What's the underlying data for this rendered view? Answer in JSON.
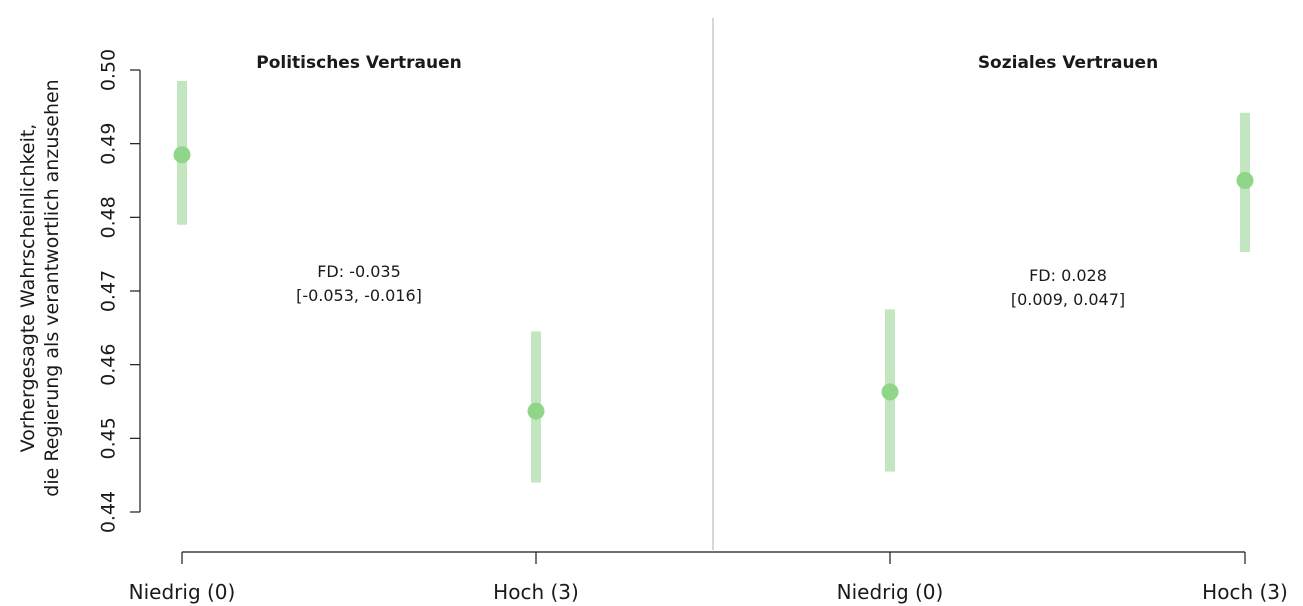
{
  "chart_data": {
    "type": "scatter",
    "ylabel": [
      "Vorhergesagte Wahrscheinlichkeit,",
      "die Regierung als verantwortlich anzusehen"
    ],
    "ylim": [
      0.44,
      0.5
    ],
    "yticks": [
      "0.44",
      "0.45",
      "0.46",
      "0.47",
      "0.48",
      "0.49",
      "0.50"
    ],
    "grid": false,
    "colors": {
      "point": "#8fd68a",
      "interval": "#c2e6bf",
      "divider": "#c8c8c8",
      "axis": "#1a1a1a"
    },
    "panels": [
      {
        "title": "Politisches Vertrauen",
        "categories": [
          "Niedrig (0)",
          "Hoch (3)"
        ],
        "points": [
          {
            "x": "Niedrig (0)",
            "y": 0.4885,
            "ci": [
              0.479,
              0.4985
            ]
          },
          {
            "x": "Hoch (3)",
            "y": 0.4537,
            "ci": [
              0.444,
              0.4645
            ]
          }
        ],
        "annotation": [
          "FD: -0.035",
          "[-0.053, -0.016]"
        ]
      },
      {
        "title": "Soziales Vertrauen",
        "categories": [
          "Niedrig (0)",
          "Hoch (3)"
        ],
        "points": [
          {
            "x": "Niedrig (0)",
            "y": 0.4563,
            "ci": [
              0.4455,
              0.4675
            ]
          },
          {
            "x": "Hoch (3)",
            "y": 0.485,
            "ci": [
              0.4753,
              0.4942
            ]
          }
        ],
        "annotation": [
          "FD: 0.028",
          "[0.009, 0.047]"
        ]
      }
    ]
  }
}
